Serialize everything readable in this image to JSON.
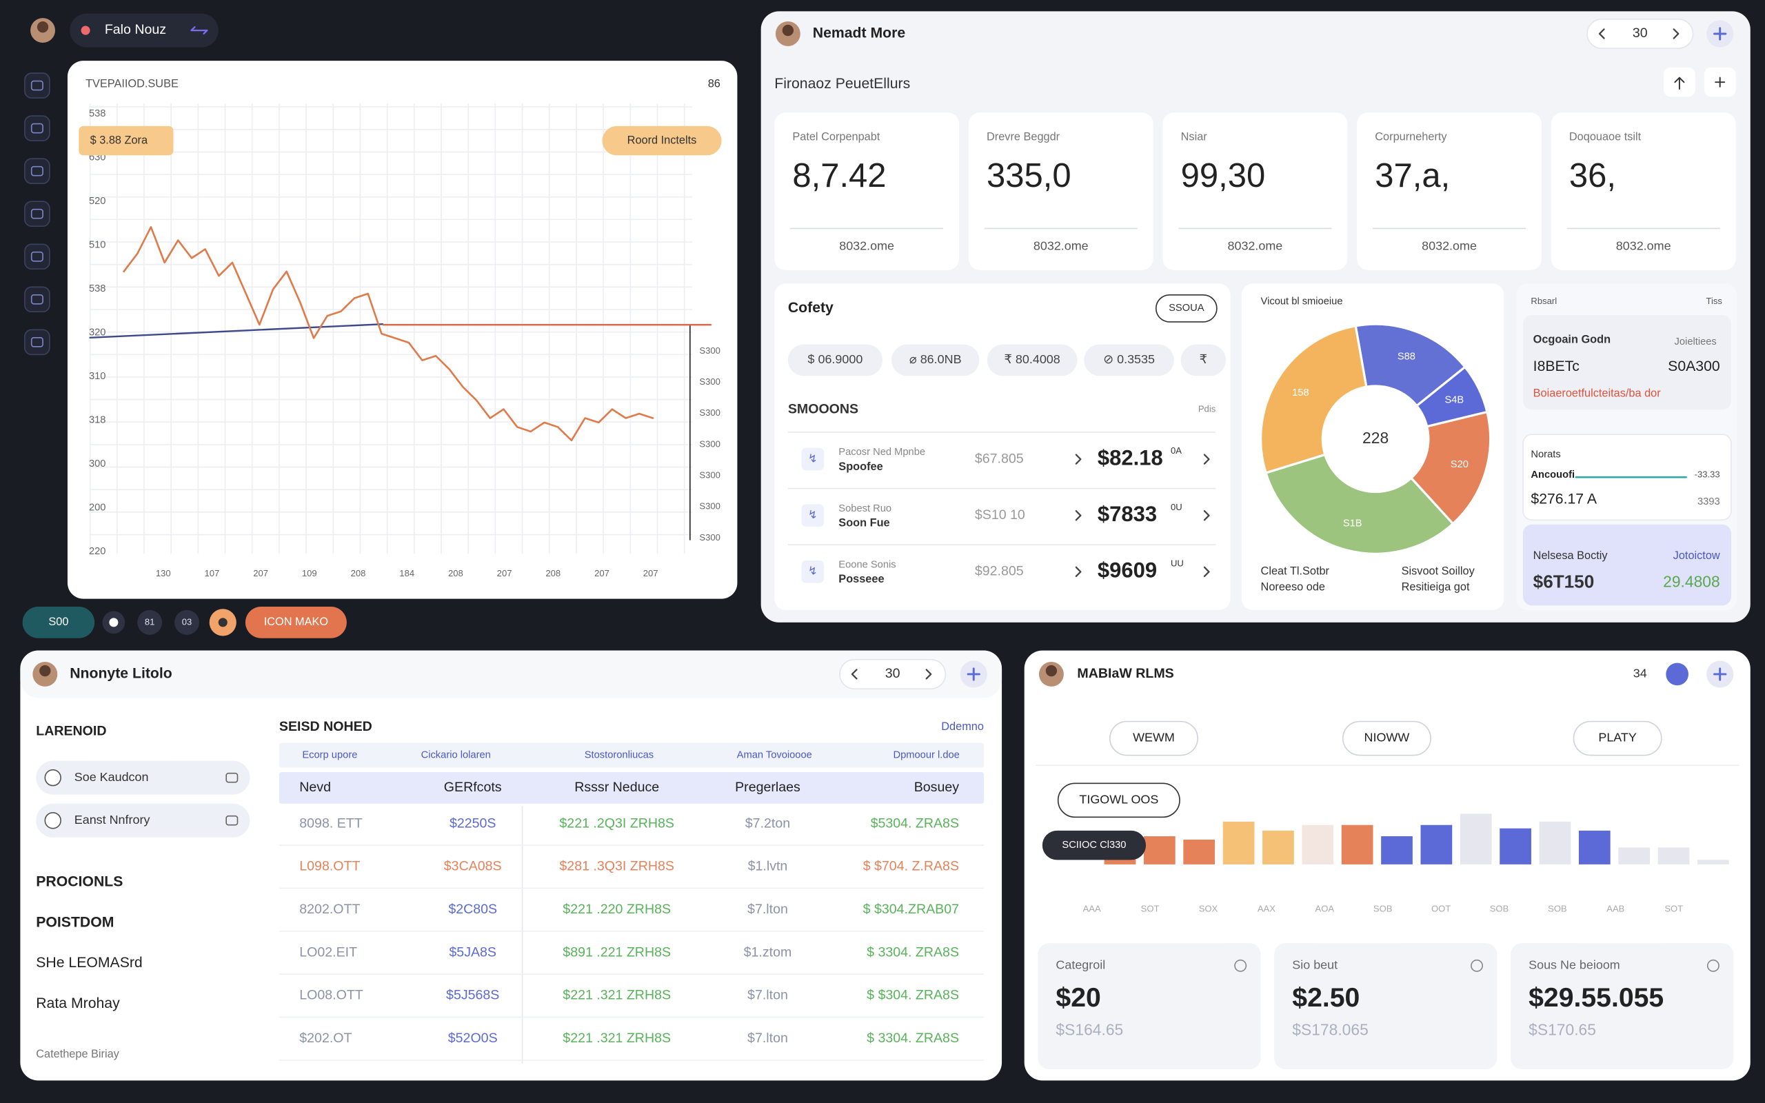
{
  "topbar": {
    "user": "Falo Nouz"
  },
  "price_panel": {
    "title": "TVEPAIIOD.SUBE",
    "corner": "86",
    "badge_left": "$ 3.88 Zora",
    "badge_right": "Roord Inctelts",
    "y_labels": [
      "538",
      "630",
      "520",
      "510",
      "538",
      "320",
      "310",
      "318",
      "300",
      "200",
      "220"
    ],
    "y2_labels": [
      "S300",
      "S300",
      "S300",
      "S300",
      "S300",
      "S300",
      "S300"
    ],
    "x_labels": [
      "130",
      "107",
      "207",
      "109",
      "208",
      "184",
      "208",
      "207",
      "208",
      "207",
      "207"
    ],
    "ylim": [
      0,
      100
    ],
    "values": [
      63,
      67,
      73,
      65,
      70,
      66,
      68,
      62,
      65,
      58,
      51,
      59,
      63,
      56,
      48,
      53,
      54,
      57,
      58,
      49,
      48,
      47,
      43,
      44,
      41,
      37,
      34,
      30,
      32,
      28,
      27,
      29,
      28,
      25,
      30,
      29,
      32,
      30,
      31,
      30
    ],
    "reference": 51
  },
  "toolbar": {
    "pill": "S00",
    "circles": [
      "81",
      "03"
    ],
    "action": "ICON MAKO"
  },
  "summary_panel": {
    "user": "Nemadt More",
    "counter": "30",
    "subtitle": "Fironaoz PeuetEllurs",
    "kpis": [
      {
        "label": "Patel Corpenpabt",
        "value": "8,7.42",
        "foot": "8032.ome"
      },
      {
        "label": "Drevre Beggdr",
        "value": "335,0",
        "foot": "8032.ome"
      },
      {
        "label": "Nsiar",
        "value": "99,30",
        "foot": "8032.ome"
      },
      {
        "label": "Corpurneherty",
        "value": "37,a,",
        "foot": "8032.ome"
      },
      {
        "label": "Doqouaoe tsilt",
        "value": "36,",
        "foot": "8032.ome"
      }
    ]
  },
  "cofety": {
    "title": "Cofety",
    "badge": "SSOUA",
    "chips": [
      "$ 06.9000",
      "⌀ 86.0NB",
      "₹ 80.4008",
      "⊘ 0.3535",
      "₹"
    ],
    "section": "SMOOONS",
    "section_note": "Pdis",
    "rows": [
      {
        "icon": "↯",
        "title": "Pacosr Ned Mpnbe",
        "sub": "Spoofee",
        "mid": "$67.805",
        "value": "$82.18",
        "sup": "0A"
      },
      {
        "icon": "↯",
        "title": "Sobest Ruo",
        "sub": "Soon Fue",
        "mid": "$S10 10",
        "value": "$7833",
        "sup": "0U"
      },
      {
        "icon": "↯",
        "title": "Eoone Sonis",
        "sub": "Posseee",
        "mid": "$92.805",
        "value": "$9609",
        "sup": "UU"
      }
    ]
  },
  "donut": {
    "title": "Vicout bl smioeiue",
    "center": "228",
    "segments": [
      {
        "value": 17,
        "color": "#6370d4",
        "label": "S88"
      },
      {
        "value": 7,
        "color": "#5b6ad6",
        "label": "S4B"
      },
      {
        "value": 17,
        "color": "#e5825a",
        "label": "S20"
      },
      {
        "value": 32,
        "color": "#9cc47e",
        "label": "S1B"
      },
      {
        "value": 27,
        "color": "#f4b45e",
        "label": "158"
      }
    ],
    "legend": [
      {
        "line1": "Cleat Tl.Sotbr",
        "line2": "Noreeso ode"
      },
      {
        "line1": "Sisvoot Soilloy",
        "line2": "Resitieiga got"
      }
    ]
  },
  "side_cards": {
    "header_left": "Rbsarl",
    "header_right": "Tiss",
    "card1": {
      "title": "Ocgoain Godn",
      "note": "Joieltiees",
      "a": "I8BETc",
      "b": "S0A300",
      "alert": "Boiaeroetfulcteitas/ba dor"
    },
    "card2": {
      "title": "Norats",
      "line": "Ancouofi",
      "line_note": "-33.33",
      "value": "$276.17 A",
      "value_note": "3393"
    },
    "card3": {
      "title": "Nelsesa Boctiy",
      "note": "Jotoictow",
      "value": "$6T150",
      "value2": "29.4808"
    }
  },
  "ledger_panel": {
    "user": "Nnonyte Litolo",
    "counter": "30",
    "sidebar": {
      "heading": "LARENOID",
      "options": [
        "Soe Kaudcon",
        "Eanst Nnfrory"
      ],
      "sections": [
        "PROCIONLS",
        "POISTDOM",
        "SHe LEOMASrd",
        "Rata Mrohay"
      ],
      "footer": "Catethepe Biriay"
    },
    "table": {
      "title": "SEISD NOHED",
      "link": "Ddemno",
      "tabs": [
        "Ecorp upore",
        "Cickario lolaren",
        "Stostoronliucas",
        "Aman Tovoioooe",
        "Dpmoour l.doe"
      ],
      "header": [
        "Nevd",
        "GERfcots",
        "Rsssr Neduce",
        "Pregerlaes",
        "Bosuey"
      ],
      "rows": [
        [
          "8098. ETT",
          "$2250S",
          "$221 .2Q3I ZRH8S",
          "$7.2ton",
          "$5304. ZRA8S"
        ],
        [
          "L098.OTT",
          "$3CA08S",
          "$281 .3Q3I ZRH8S",
          "$1.lvtn",
          "$ $704. Z.RA8S"
        ],
        [
          "8202.OTT",
          "$2C80S",
          "$221 .220 ZRH8S",
          "$7.lton",
          "$ $304.ZRAB07"
        ],
        [
          "LO02.EIT",
          "$5JA8S",
          "$891 .221 ZRH8S",
          "$1.ztom",
          "$ 3304. ZRA8S"
        ],
        [
          "LO08.OTT",
          "$5J568S",
          "$221 .321 ZRH8S",
          "$7.lton",
          "$ $304. ZRA8S"
        ],
        [
          "$202.OT",
          "$52O0S",
          "$221 .321 ZRH8S",
          "$7.lton",
          "$ 3304. ZRA8S"
        ]
      ]
    }
  },
  "bars_panel": {
    "user": "MABIaW RLMS",
    "counter": "34",
    "tabs": [
      "WEWM",
      "NIOWW",
      "PLATY"
    ],
    "filter": "TIGOWL OOS",
    "tooltip": "SCIIOC Cl330",
    "ylim": [
      0,
      50
    ],
    "values": [
      20,
      25,
      22,
      38,
      30,
      35,
      35,
      25,
      35,
      45,
      32,
      38,
      30,
      15,
      15,
      4
    ],
    "colors": [
      "#e5825a",
      "#e5825a",
      "#e5825a",
      "#f4c177",
      "#f4c177",
      "#f3e6e0",
      "#e5825a",
      "#5b6ad6",
      "#5b6ad6",
      "#e6e7ee",
      "#5b6ad6",
      "#e6e7ee",
      "#5b6ad6",
      "#e6e7ee",
      "#e6e7ee",
      "#e6e7ee"
    ],
    "x_labels": [
      "AAA",
      "SOT",
      "SOX",
      "AAX",
      "AOA",
      "SOB",
      "OOT",
      "SOB",
      "SOB",
      "AAB",
      "SOT"
    ],
    "stats": [
      {
        "label": "Categroil",
        "value": "$20",
        "sub": "$S164.65"
      },
      {
        "label": "Sio beut",
        "value": "$2.50",
        "sub": "$S178.065"
      },
      {
        "label": "Sous Ne beioom",
        "value": "$29.55.055",
        "sub": "$S170.65"
      }
    ]
  }
}
